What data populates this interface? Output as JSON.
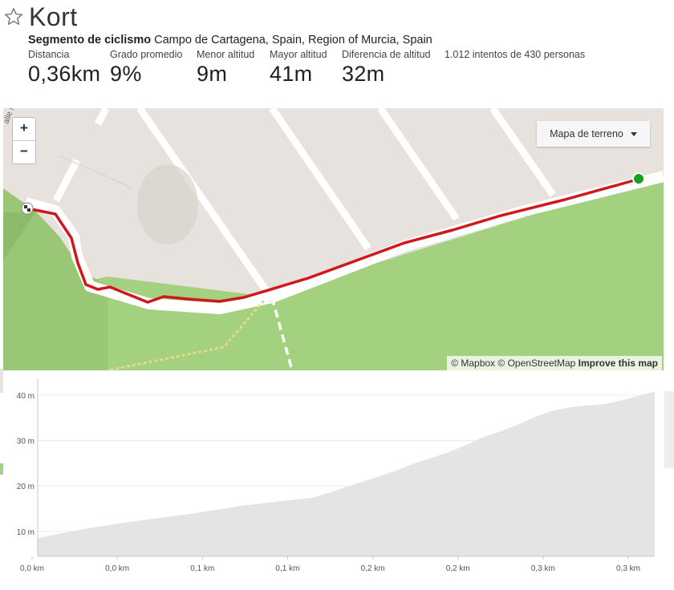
{
  "header": {
    "title": "Kort",
    "subtitle_type": "Segmento de ciclismo",
    "subtitle_location": "Campo de Cartagena, Spain, Region of Murcia, Spain"
  },
  "stats": [
    {
      "label": "Distancia",
      "value": "0,36km"
    },
    {
      "label": "Grado promedio",
      "value": "9%"
    },
    {
      "label": "Menor altitud",
      "value": "9m"
    },
    {
      "label": "Mayor altitud",
      "value": "41m"
    },
    {
      "label": "Diferencia de altitud",
      "value": "32m"
    },
    {
      "label": "1.012 intentos de 430 personas",
      "value": ""
    }
  ],
  "map": {
    "zoom_in": "+",
    "zoom_out": "−",
    "layer_selector": "Mapa de terreno",
    "attribution": {
      "mapbox": "© Mapbox",
      "osm": "© OpenStreetMap",
      "improve": "Improve this map"
    },
    "street_label": "alle M",
    "colors": {
      "route": "#d0171b",
      "start": "#1aa11a",
      "land": "#e7e2dd",
      "park": "#a4d17f",
      "road": "#ffffff"
    }
  },
  "chart_data": {
    "type": "area",
    "x_tick_labels": [
      "0,0 km",
      "0,0 km",
      "0,1 km",
      "0,1 km",
      "0,2 km",
      "0,2 km",
      "0,3 km",
      "0,3 km"
    ],
    "y_tick_labels": [
      "10 m",
      "20 m",
      "30 m",
      "40 m"
    ],
    "y_ticks": [
      10,
      20,
      30,
      40
    ],
    "ylim": [
      4.5,
      43
    ],
    "xlim": [
      0,
      0.36
    ],
    "x": [
      0,
      0.01,
      0.02,
      0.03,
      0.04,
      0.05,
      0.06,
      0.07,
      0.08,
      0.09,
      0.1,
      0.11,
      0.12,
      0.13,
      0.14,
      0.15,
      0.16,
      0.17,
      0.18,
      0.19,
      0.2,
      0.21,
      0.22,
      0.23,
      0.24,
      0.25,
      0.26,
      0.27,
      0.28,
      0.29,
      0.3,
      0.31,
      0.32,
      0.33,
      0.34,
      0.35,
      0.36
    ],
    "elevation": [
      8.5,
      9.3,
      10.0,
      10.7,
      11.3,
      11.9,
      12.4,
      12.9,
      13.4,
      13.9,
      14.5,
      15.1,
      15.7,
      16.1,
      16.6,
      17.0,
      17.4,
      18.5,
      19.8,
      21.0,
      22.2,
      23.5,
      25.0,
      26.2,
      27.5,
      29.0,
      30.8,
      32.0,
      33.5,
      35.2,
      36.5,
      37.3,
      37.7,
      38.0,
      38.8,
      39.8,
      40.8
    ],
    "colors": {
      "fill": "#e4e4e4",
      "grid": "#ececec",
      "axis": "#c8c8c8"
    }
  }
}
